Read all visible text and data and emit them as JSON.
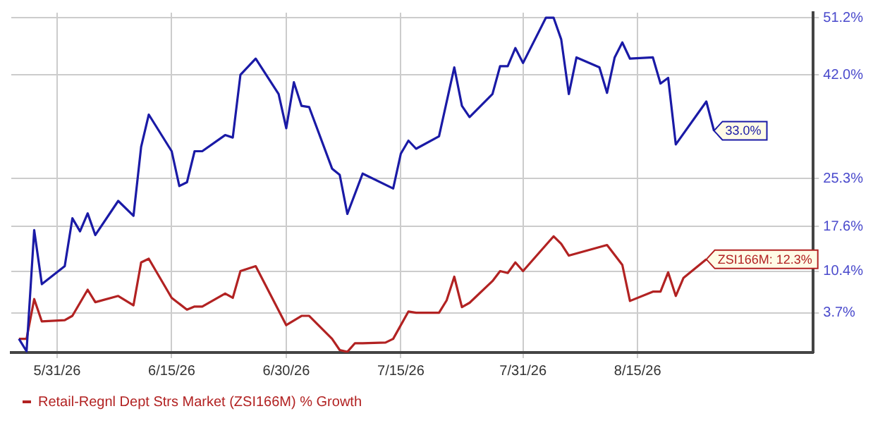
{
  "chart_data": {
    "type": "line",
    "grid": true,
    "legend": "bottom",
    "marker": "none",
    "line_style": "solid",
    "xlim": [
      "2026-05-25",
      "2026-09-07"
    ],
    "xticks": [
      {
        "value": "2026-05-31",
        "label": "5/31/26"
      },
      {
        "value": "2026-06-15",
        "label": "6/15/26"
      },
      {
        "value": "2026-06-30",
        "label": "6/30/26"
      },
      {
        "value": "2026-07-15",
        "label": "7/15/26"
      },
      {
        "value": "2026-07-31",
        "label": "7/31/26"
      },
      {
        "value": "2026-08-15",
        "label": "8/15/26"
      }
    ],
    "ylim": [
      -2.7,
      52
    ],
    "yticks": [
      {
        "value": 3.7,
        "label": "3.7%"
      },
      {
        "value": 10.4,
        "label": "10.4%"
      },
      {
        "value": 17.6,
        "label": "17.6%"
      },
      {
        "value": 25.3,
        "label": "25.3%"
      },
      {
        "value": 42.0,
        "label": "42.0%"
      },
      {
        "value": 51.2,
        "label": "51.2%"
      }
    ],
    "series": [
      {
        "color": "#1a1aa6",
        "x": [
          "2026-05-26",
          "2026-05-27",
          "2026-05-28",
          "2026-05-29",
          "2026-06-01",
          "2026-06-02",
          "2026-06-03",
          "2026-06-04",
          "2026-06-05",
          "2026-06-08",
          "2026-06-10",
          "2026-06-11",
          "2026-06-12",
          "2026-06-15",
          "2026-06-16",
          "2026-06-17",
          "2026-06-18",
          "2026-06-19",
          "2026-06-22",
          "2026-06-23",
          "2026-06-24",
          "2026-06-26",
          "2026-06-29",
          "2026-06-30",
          "2026-07-01",
          "2026-07-02",
          "2026-07-03",
          "2026-07-06",
          "2026-07-07",
          "2026-07-08",
          "2026-07-10",
          "2026-07-14",
          "2026-07-15",
          "2026-07-16",
          "2026-07-17",
          "2026-07-20",
          "2026-07-22",
          "2026-07-23",
          "2026-07-24",
          "2026-07-27",
          "2026-07-28",
          "2026-07-29",
          "2026-07-30",
          "2026-07-31",
          "2026-08-03",
          "2026-08-04",
          "2026-08-05",
          "2026-08-06",
          "2026-08-07",
          "2026-08-10",
          "2026-08-11",
          "2026-08-12",
          "2026-08-13",
          "2026-08-14",
          "2026-08-17",
          "2026-08-18",
          "2026-08-19",
          "2026-08-20",
          "2026-08-24",
          "2026-08-25"
        ],
        "values": [
          -0.5,
          -2.5,
          17.0,
          8.3,
          11.2,
          18.9,
          16.8,
          19.7,
          16.2,
          21.7,
          19.3,
          30.4,
          35.6,
          29.7,
          24.1,
          24.7,
          29.7,
          29.7,
          32.3,
          31.9,
          42.0,
          44.6,
          38.9,
          33.4,
          40.8,
          37.0,
          36.8,
          26.9,
          25.9,
          19.6,
          26.1,
          23.7,
          29.3,
          31.4,
          30.1,
          32.1,
          43.2,
          37.0,
          35.2,
          38.9,
          43.4,
          43.4,
          46.3,
          43.9,
          51.2,
          51.2,
          47.7,
          38.9,
          44.8,
          43.2,
          39.1,
          44.8,
          47.2,
          44.6,
          44.8,
          40.6,
          41.5,
          30.8,
          37.7,
          33.0
        ]
      },
      {
        "name": "Retail-Regnl Dept Strs Market (ZSI166M) % Growth",
        "color": "#b22222",
        "x": [
          "2026-05-26",
          "2026-05-27",
          "2026-05-28",
          "2026-05-29",
          "2026-06-01",
          "2026-06-02",
          "2026-06-04",
          "2026-06-05",
          "2026-06-08",
          "2026-06-10",
          "2026-06-11",
          "2026-06-12",
          "2026-06-15",
          "2026-06-17",
          "2026-06-18",
          "2026-06-19",
          "2026-06-22",
          "2026-06-23",
          "2026-06-24",
          "2026-06-26",
          "2026-06-30",
          "2026-07-02",
          "2026-07-03",
          "2026-07-06",
          "2026-07-07",
          "2026-07-08",
          "2026-07-09",
          "2026-07-10",
          "2026-07-13",
          "2026-07-14",
          "2026-07-16",
          "2026-07-17",
          "2026-07-20",
          "2026-07-21",
          "2026-07-22",
          "2026-07-23",
          "2026-07-24",
          "2026-07-27",
          "2026-07-28",
          "2026-07-29",
          "2026-07-30",
          "2026-07-31",
          "2026-08-04",
          "2026-08-05",
          "2026-08-06",
          "2026-08-11",
          "2026-08-13",
          "2026-08-14",
          "2026-08-17",
          "2026-08-18",
          "2026-08-19",
          "2026-08-20",
          "2026-08-21",
          "2026-08-24"
        ],
        "values": [
          -0.5,
          -0.5,
          5.9,
          2.3,
          2.5,
          3.2,
          7.4,
          5.4,
          6.4,
          4.9,
          11.8,
          12.4,
          6.1,
          4.2,
          4.7,
          4.7,
          6.8,
          6.1,
          10.4,
          11.2,
          1.7,
          3.2,
          3.2,
          -0.5,
          -2.3,
          -2.6,
          -1.2,
          -1.2,
          -1.1,
          -0.5,
          3.9,
          3.7,
          3.7,
          5.7,
          9.5,
          4.6,
          5.3,
          8.8,
          10.4,
          10.1,
          11.8,
          10.4,
          16.0,
          14.8,
          12.9,
          14.6,
          11.4,
          5.6,
          7.1,
          7.1,
          10.2,
          6.4,
          9.3,
          12.3
        ]
      }
    ],
    "annotations": [
      {
        "text": "33.0%",
        "x": "2026-08-25",
        "y": 33.0
      },
      {
        "text": "ZSI166M: 12.3%",
        "x": "2026-08-24",
        "y": 12.3
      }
    ]
  }
}
